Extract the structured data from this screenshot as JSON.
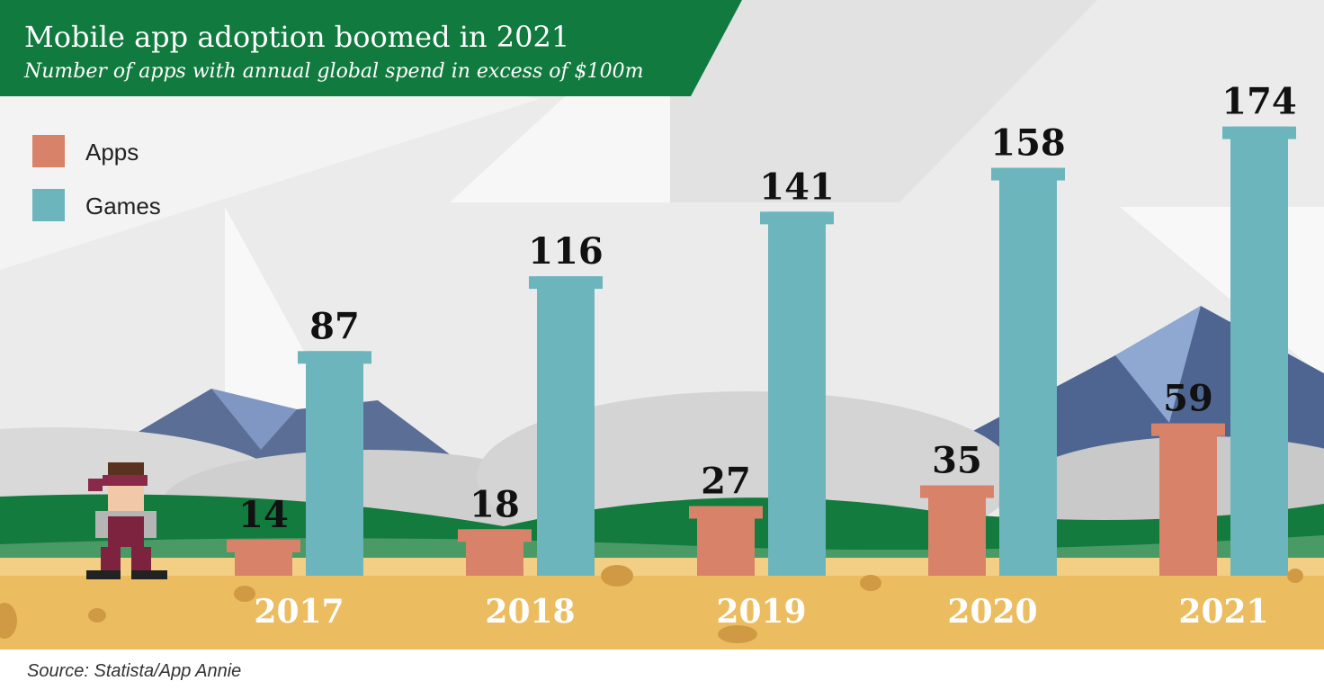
{
  "chart_data": {
    "type": "bar",
    "title": "Mobile app adoption boomed in 2021",
    "subtitle": "Number of apps with annual global spend in excess of $100m",
    "source": "Source: Statista/App Annie",
    "categories": [
      "2017",
      "2018",
      "2019",
      "2020",
      "2021"
    ],
    "series": [
      {
        "name": "Apps",
        "color": "#d9826a",
        "values": [
          14,
          18,
          27,
          35,
          59
        ]
      },
      {
        "name": "Games",
        "color": "#6db5bd",
        "values": [
          87,
          116,
          141,
          158,
          174
        ]
      }
    ],
    "legend": "top-left"
  }
}
